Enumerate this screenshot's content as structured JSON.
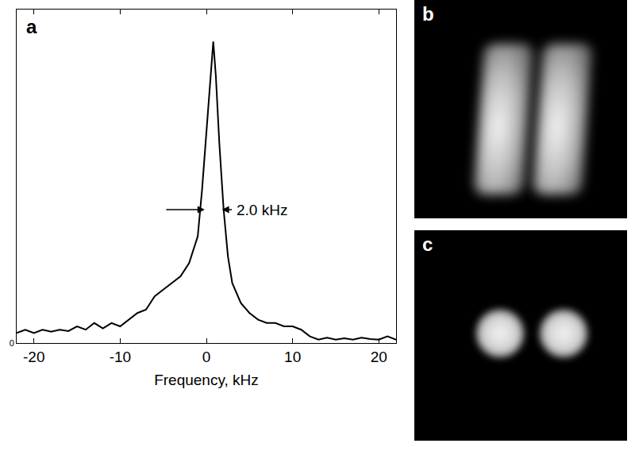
{
  "chart_data": {
    "type": "line",
    "label": "a",
    "x": [
      -22,
      -21,
      -20,
      -19,
      -18,
      -17,
      -16,
      -15,
      -14,
      -13,
      -12,
      -11,
      -10,
      -9,
      -8,
      -7,
      -6,
      -5,
      -4,
      -3,
      -2,
      -1,
      -0.5,
      0,
      0.5,
      0.8,
      1.1,
      1.5,
      2,
      2.5,
      3,
      4,
      5,
      6,
      7,
      8,
      9,
      10,
      11,
      12,
      13,
      14,
      15,
      16,
      17,
      18,
      19,
      20,
      21,
      22
    ],
    "values": [
      0.15,
      0.2,
      0.15,
      0.2,
      0.17,
      0.2,
      0.18,
      0.25,
      0.2,
      0.3,
      0.22,
      0.3,
      0.25,
      0.35,
      0.45,
      0.5,
      0.7,
      0.8,
      0.9,
      1.0,
      1.2,
      1.6,
      2.3,
      3.2,
      4.0,
      4.52,
      4.0,
      3.0,
      2.0,
      1.3,
      0.9,
      0.6,
      0.45,
      0.35,
      0.3,
      0.3,
      0.25,
      0.25,
      0.2,
      0.1,
      0.05,
      0.08,
      0.05,
      0.07,
      0.05,
      0.08,
      0.06,
      0.05,
      0.1,
      0.05
    ],
    "color": "#000000",
    "xlabel": "Frequency, kHz",
    "xlim": [
      -22,
      22
    ],
    "xticks": [
      -20,
      -10,
      0,
      10,
      20
    ],
    "ylim": [
      0,
      5
    ],
    "yticks": [
      0
    ],
    "grid": false,
    "annotations": [
      {
        "text": "2.0 kHz",
        "x": [
          -0.2,
          1.8
        ],
        "y": 2
      }
    ]
  },
  "images": [
    {
      "label": "b"
    },
    {
      "label": "c"
    }
  ]
}
